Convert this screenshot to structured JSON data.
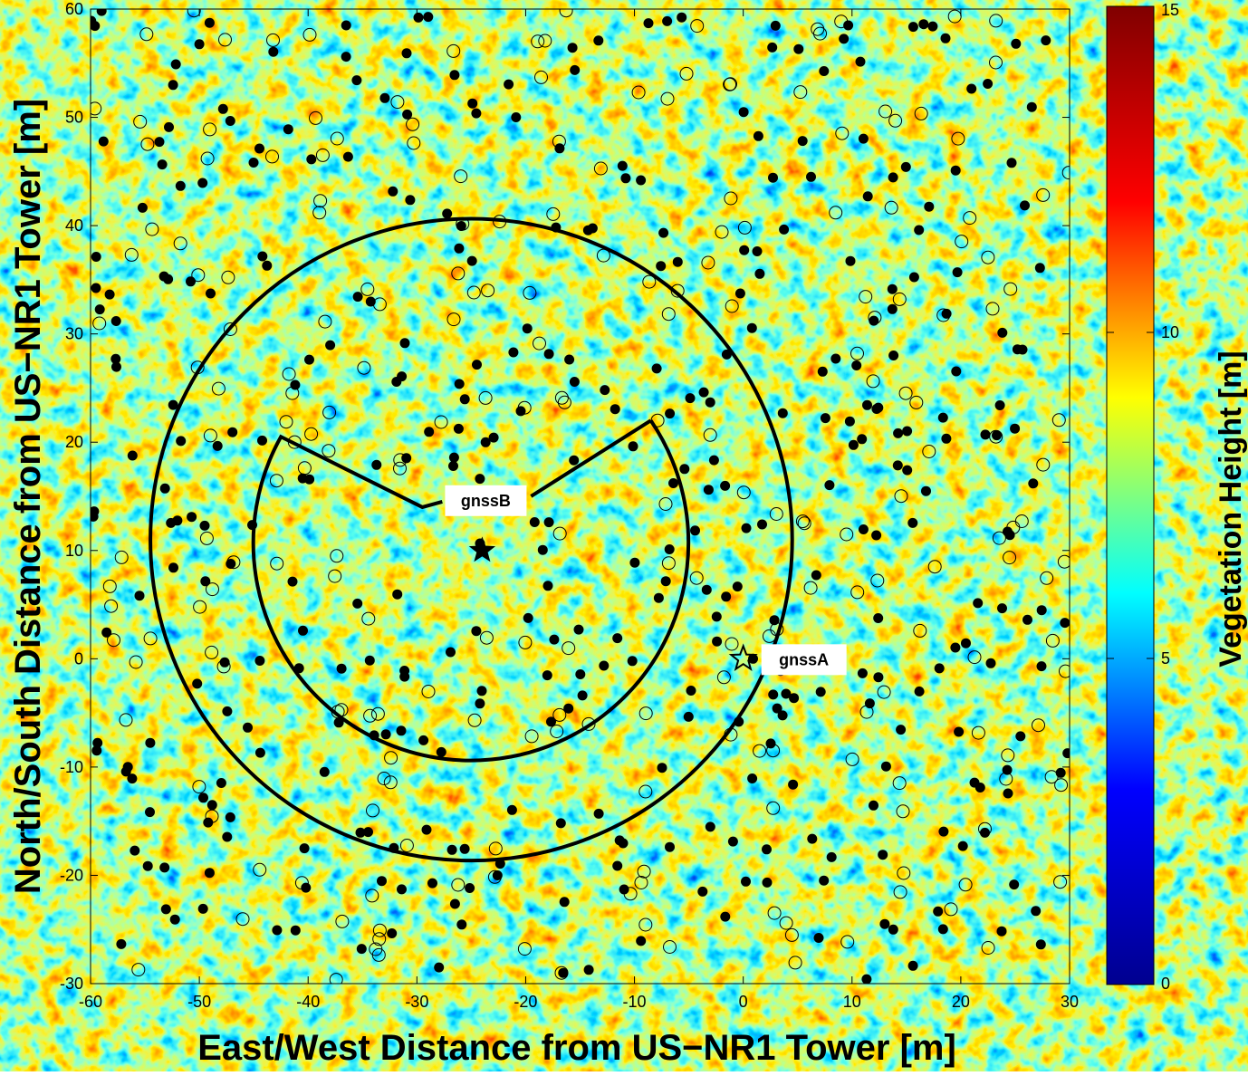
{
  "chart_data": {
    "type": "heatmap",
    "title": "",
    "xlabel": "East/West Distance from US−NR1 Tower [m]",
    "ylabel": "North/South Distance from US−NR1 Tower [m]",
    "xlim": [
      -60,
      30
    ],
    "ylim": [
      -30,
      60
    ],
    "xticks": [
      -60,
      -50,
      -40,
      -30,
      -20,
      -10,
      0,
      10,
      20,
      30
    ],
    "yticks": [
      -30,
      -20,
      -10,
      0,
      10,
      20,
      30,
      40,
      50,
      60
    ],
    "grid": false,
    "colorbar": {
      "label": "Vegetation Height  [m]",
      "min": 0,
      "max": 15,
      "ticks": [
        0,
        5,
        10,
        15
      ],
      "colormap": "jet",
      "stops": [
        "#00008f",
        "#0000ff",
        "#00ffff",
        "#ffff00",
        "#ff0000",
        "#800000"
      ]
    },
    "markers": [
      {
        "label": "gnssA",
        "x": 0,
        "y": 0,
        "symbol": "open-star"
      },
      {
        "label": "gnssB",
        "x": -24,
        "y": 10,
        "symbol": "filled-star"
      }
    ],
    "outer_circle": {
      "center": [
        -25,
        11
      ],
      "radius": 29.5
    },
    "inner_sector": {
      "center": [
        -24,
        11
      ],
      "radius": 20,
      "apex": [
        -29.5,
        14
      ],
      "arm_left_end": [
        -42.5,
        20.5
      ],
      "arm_right_end": [
        -8.5,
        22
      ]
    }
  }
}
